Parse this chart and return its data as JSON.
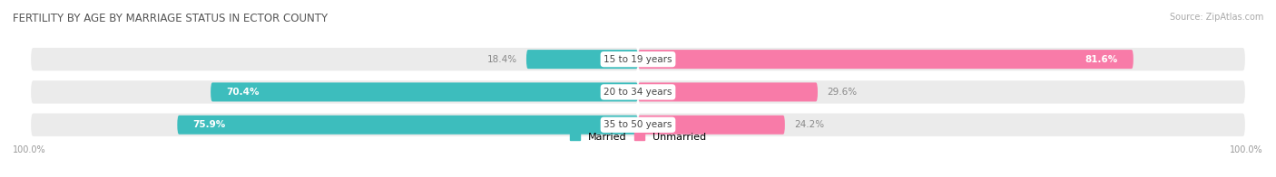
{
  "title": "FERTILITY BY AGE BY MARRIAGE STATUS IN ECTOR COUNTY",
  "source": "Source: ZipAtlas.com",
  "categories": [
    "15 to 19 years",
    "20 to 34 years",
    "35 to 50 years"
  ],
  "married_values": [
    18.4,
    70.4,
    75.9
  ],
  "unmarried_values": [
    81.6,
    29.6,
    24.2
  ],
  "married_color": "#3DBDBD",
  "unmarried_color": "#F87BA8",
  "bg_track_color": "#EBEBEB",
  "bar_height": 0.58,
  "max_val": 100.0,
  "title_fontsize": 8.5,
  "label_fontsize": 7.5,
  "source_fontsize": 7,
  "legend_fontsize": 8,
  "axis_label": "100.0%",
  "background_color": "#FFFFFF",
  "center_label_color": "#444444",
  "inside_label_color": "#FFFFFF",
  "outside_label_color": "#888888"
}
